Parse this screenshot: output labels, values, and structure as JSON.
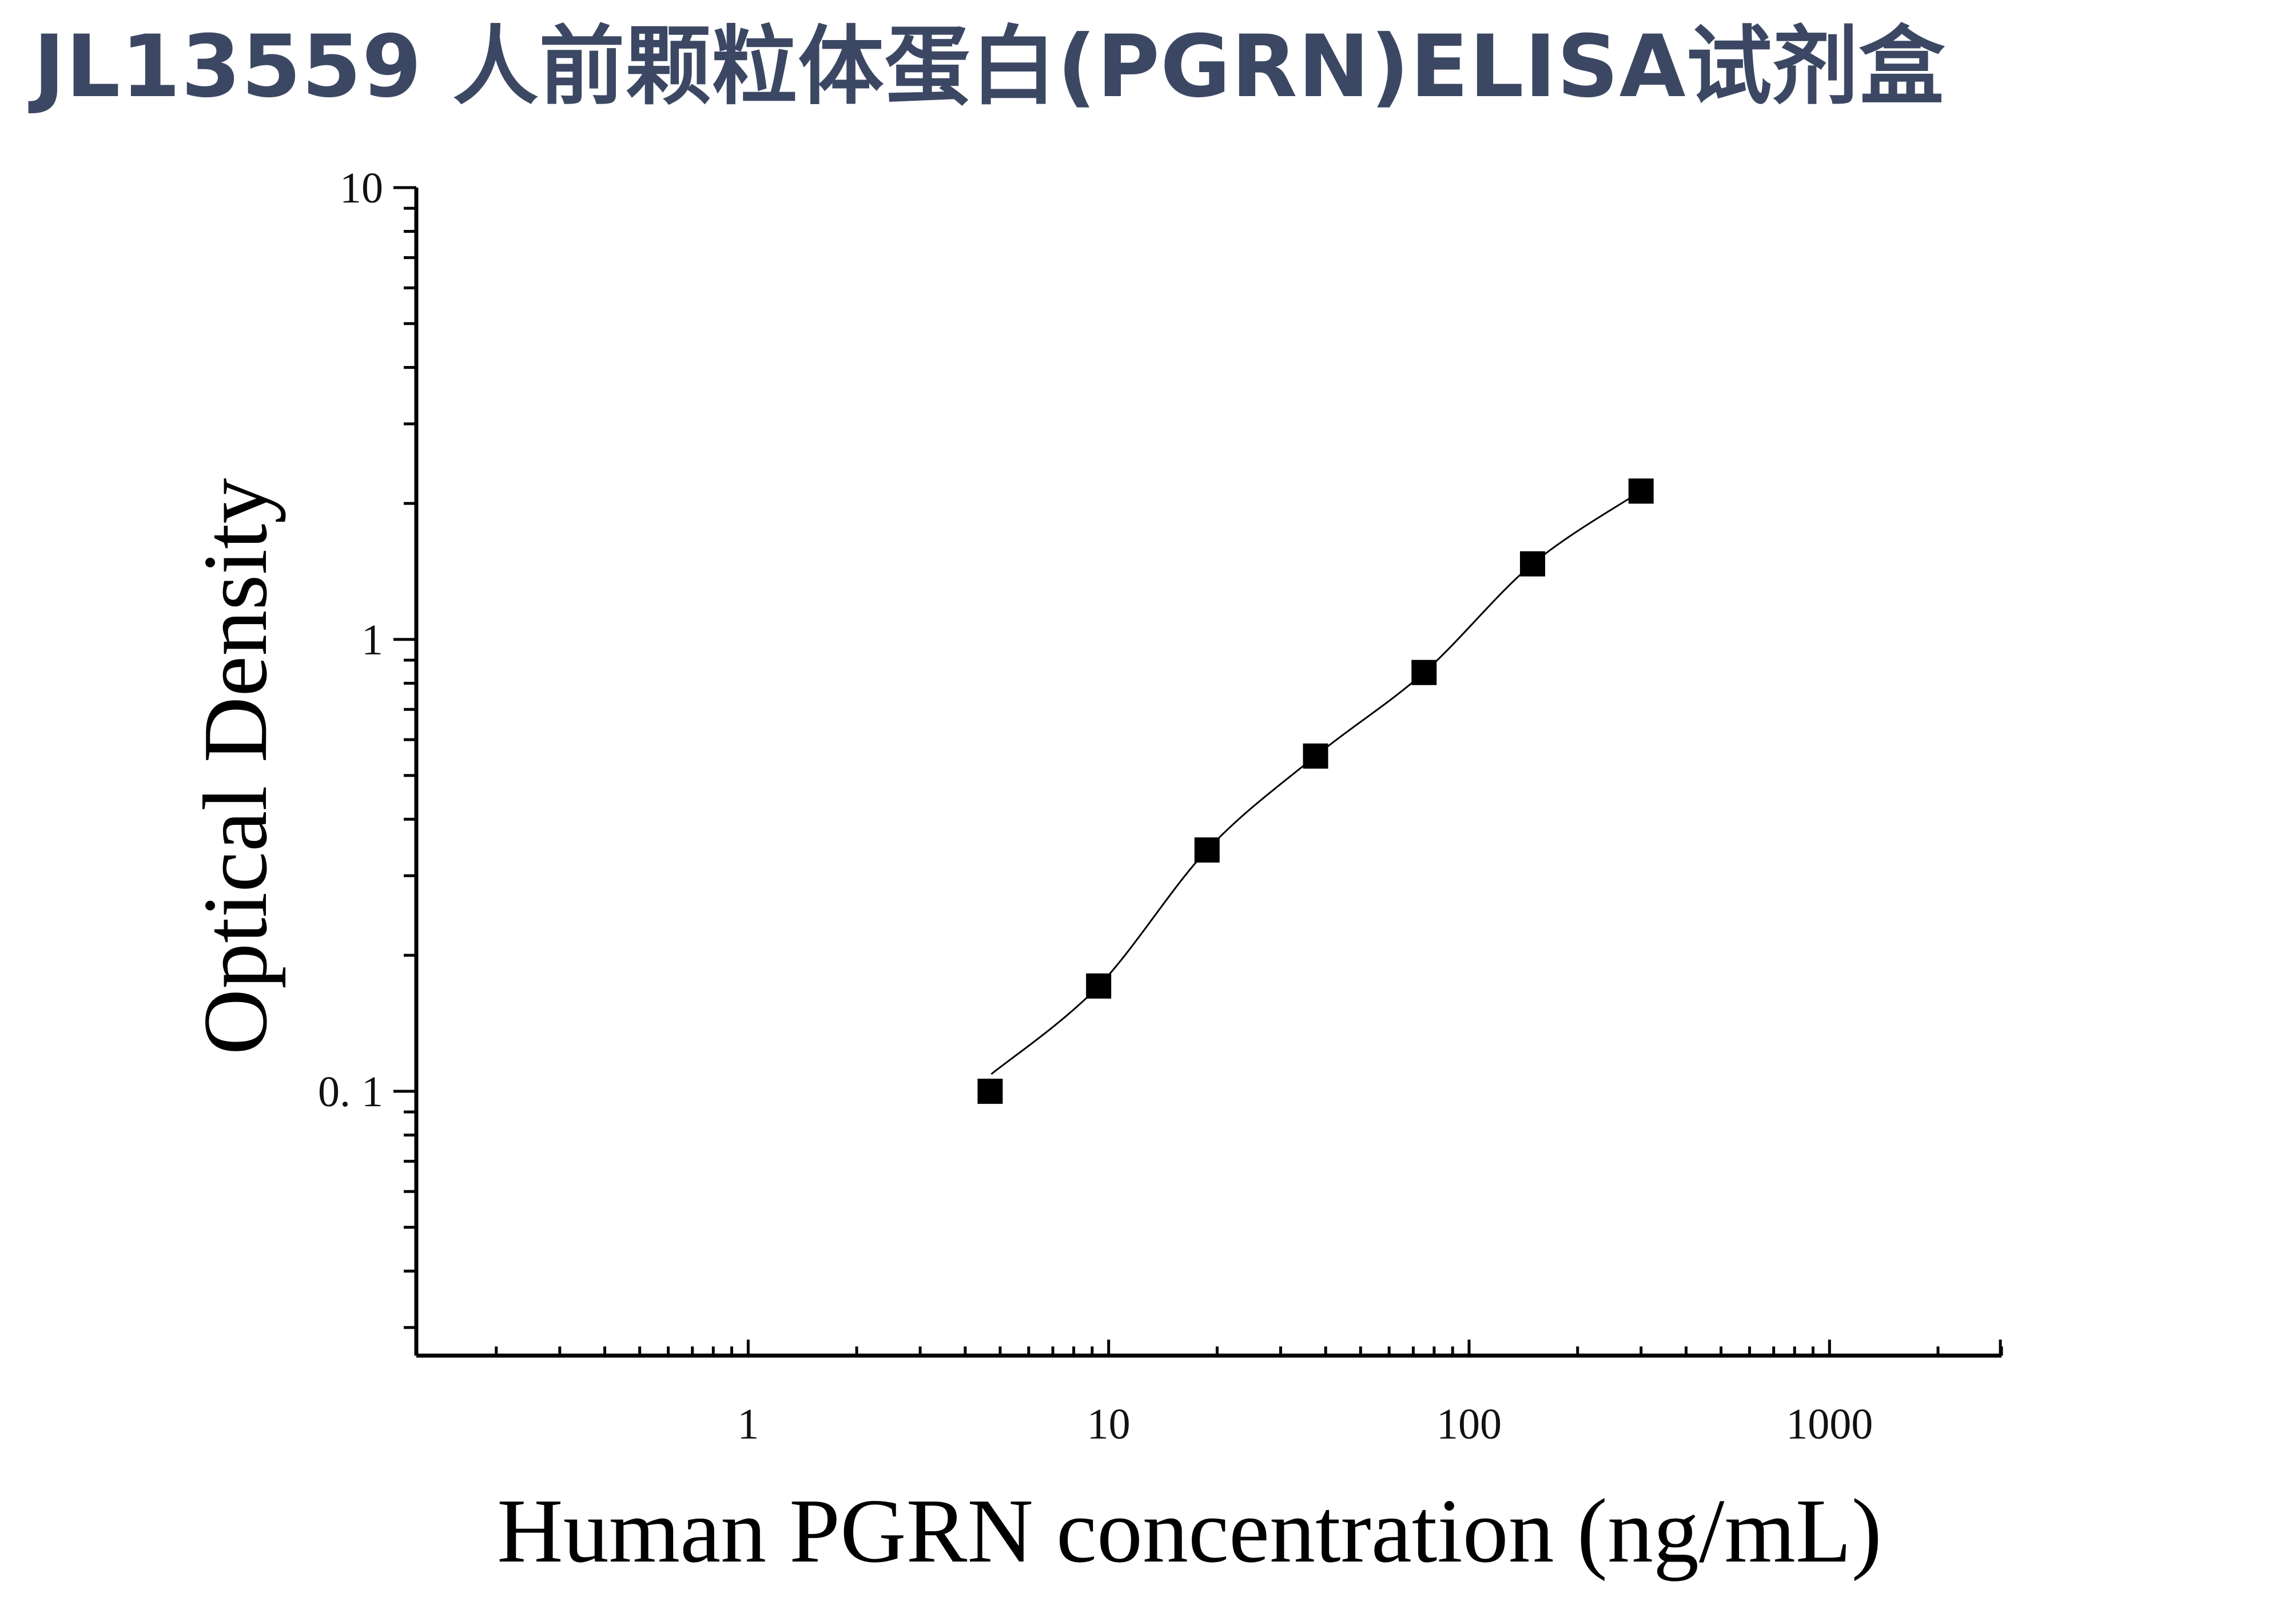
{
  "title": "JL13559 人前颗粒体蛋白(PGRN)ELISA试剂盒",
  "chart_data": {
    "type": "scatter",
    "title": "JL13559 人前颗粒体蛋白(PGRN)ELISA试剂盒",
    "xlabel": "Human PGRN concentration (ng/mL)",
    "ylabel": "Optical Density",
    "x_scale": "log",
    "y_scale": "log",
    "xlim": [
      0.12,
      3000
    ],
    "ylim": [
      0.026,
      10
    ],
    "x_ticks": [
      1,
      10,
      100,
      1000
    ],
    "x_tick_labels": [
      "1",
      "10",
      "100",
      "1000"
    ],
    "y_ticks": [
      0.1,
      1,
      10
    ],
    "y_tick_labels": [
      "0. 1",
      "1",
      "10"
    ],
    "grid": false,
    "legend": "none",
    "marker": "square",
    "marker_color": "#000000",
    "fit_line": true,
    "series": [
      {
        "x": [
          4.69,
          9.38,
          18.75,
          37.5,
          75,
          150,
          300
        ],
        "y": [
          0.1,
          0.171,
          0.342,
          0.552,
          0.845,
          1.47,
          2.13
        ]
      }
    ]
  }
}
